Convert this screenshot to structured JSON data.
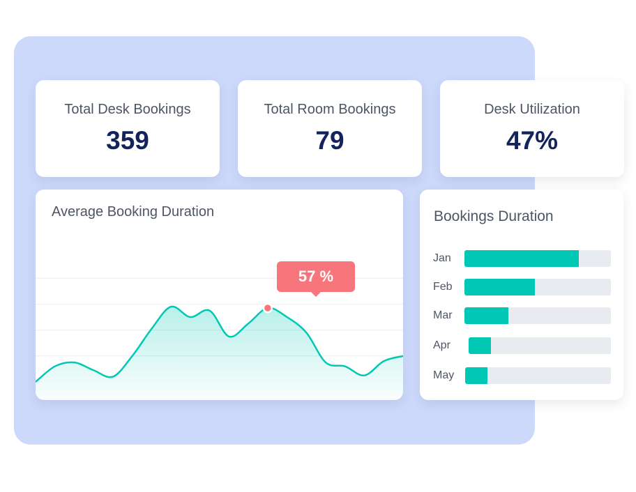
{
  "stats": [
    {
      "label": "Total Desk Bookings",
      "value": "359"
    },
    {
      "label": "Total Room Bookings",
      "value": "79"
    },
    {
      "label": "Desk Utilization",
      "value": "47%"
    }
  ],
  "line_chart": {
    "title": "Average Booking Duration",
    "tooltip": "57 %"
  },
  "bar_chart": {
    "title": "Bookings Duration"
  },
  "colors": {
    "backdrop": "#cdd9fb",
    "accent": "#00c8b4",
    "tooltip": "#f7767c",
    "value_text": "#13235b",
    "label_text": "#4d5565",
    "track": "#e8ebf0"
  },
  "chart_data": [
    {
      "type": "area",
      "title": "Average Booking Duration",
      "x": [
        0,
        1,
        2,
        3,
        4,
        5,
        6,
        7,
        8,
        9,
        10,
        11,
        12,
        13,
        14,
        15,
        16,
        17,
        18,
        19
      ],
      "values": [
        0,
        12,
        15,
        9,
        4,
        20,
        41,
        58,
        50,
        55,
        35,
        45,
        57,
        50,
        38,
        15,
        12,
        5,
        16,
        20
      ],
      "highlight": {
        "index": 12,
        "value": 57
      },
      "ylim": [
        0,
        100
      ],
      "grid": true
    },
    {
      "type": "bar",
      "orientation": "horizontal",
      "title": "Bookings Duration",
      "categories": [
        "Jan",
        "Feb",
        "Mar",
        "Apr",
        "May"
      ],
      "values": [
        78,
        48,
        30,
        15,
        15
      ],
      "ylim": [
        0,
        100
      ]
    }
  ]
}
